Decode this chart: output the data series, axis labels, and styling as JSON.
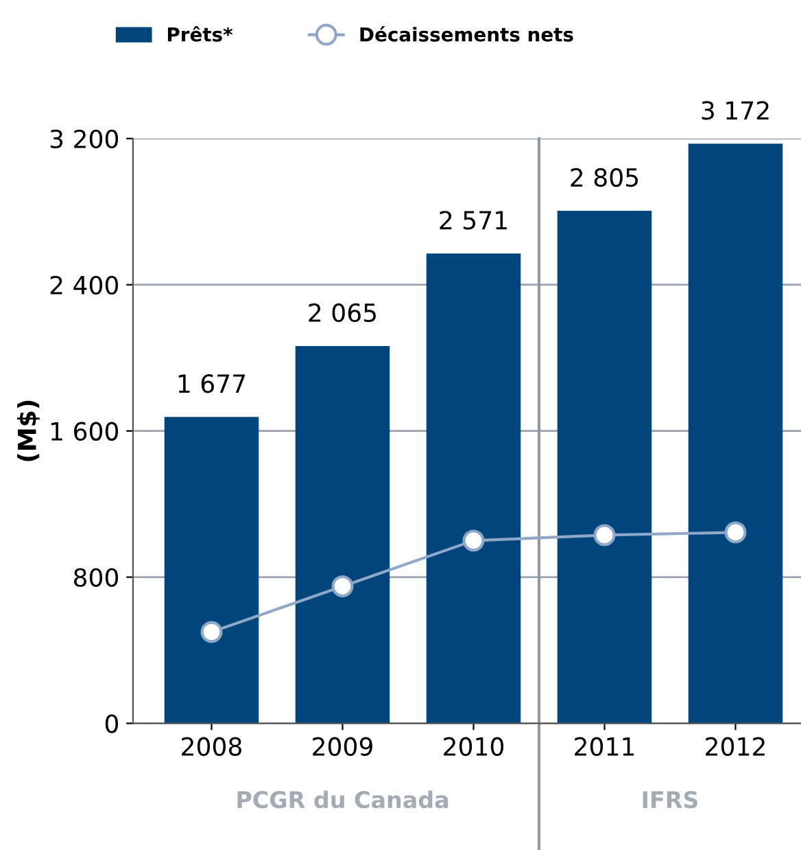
{
  "chart_data": {
    "type": "bar",
    "ylabel": "(M$)",
    "x": [
      2008,
      2009,
      2010,
      2011,
      2012
    ],
    "xlim": [
      2007.4,
      2012.5
    ],
    "xticks": [
      2008,
      2009,
      2010,
      2011,
      2012
    ],
    "ylim": [
      0,
      3200
    ],
    "yticks": [
      {
        "value": 0,
        "label": "0"
      },
      {
        "value": 800,
        "label": "800"
      },
      {
        "value": 1600,
        "label": "1 600"
      },
      {
        "value": 2400,
        "label": "2 400"
      },
      {
        "value": 3200,
        "label": "3 200"
      }
    ],
    "series": [
      {
        "name": "Prêts*",
        "color": "#00457c",
        "values": [
          1677,
          2065,
          2571,
          2805,
          3172
        ],
        "value_labels": [
          "1 677",
          "2 065",
          "2 571",
          "2 805",
          "3 172"
        ]
      },
      {
        "name": "Décaissements nets",
        "type": "line",
        "color": "#8fa8c8",
        "marker": "circle",
        "values": [
          500,
          750,
          1000,
          1030,
          1045
        ]
      }
    ],
    "ref_lines": [
      {
        "axis": "x",
        "value": 2010.5,
        "color": "#8e99a3"
      }
    ],
    "annotations": [
      "PCGR du Canada",
      "IFRS"
    ],
    "grid": "y",
    "legend": "top left"
  }
}
